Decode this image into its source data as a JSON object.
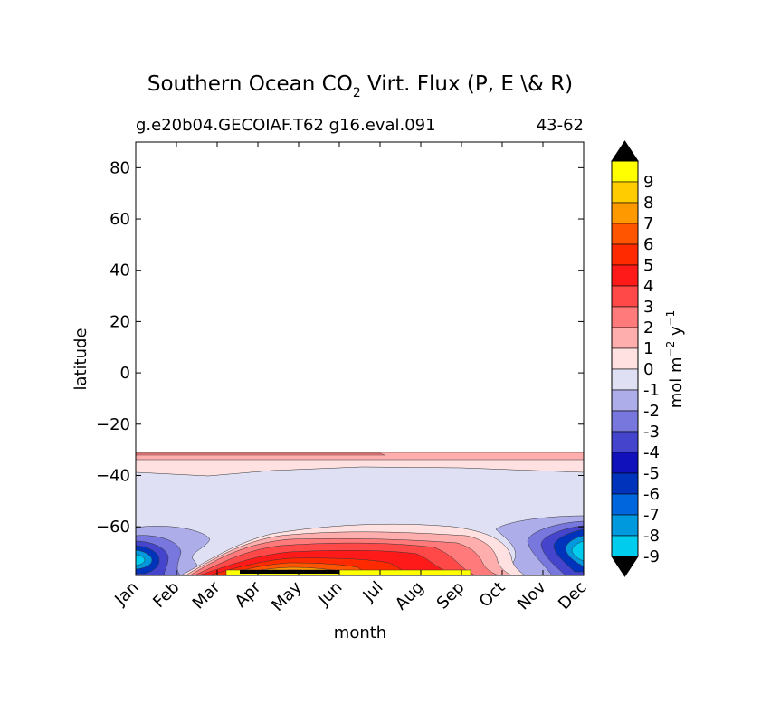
{
  "chart_data": {
    "type": "heatmap",
    "title_main": "Southern Ocean CO",
    "title_sub": "2",
    "title_rest": " Virt. Flux (P, E \\& R)",
    "subtitle_left": "g.e20b04.GECOIAF.T62 g16.eval.091",
    "subtitle_right": "43-62",
    "xlabel": "month",
    "ylabel": "latitude",
    "x_categories": [
      "Jan",
      "Feb",
      "Mar",
      "Apr",
      "May",
      "Jun",
      "Jul",
      "Aug",
      "Sep",
      "Oct",
      "Nov",
      "Dec"
    ],
    "ylim": [
      -79,
      90
    ],
    "y_ticks": [
      {
        "value": 80,
        "label": "80"
      },
      {
        "value": 60,
        "label": "60"
      },
      {
        "value": 40,
        "label": "40"
      },
      {
        "value": 20,
        "label": "20"
      },
      {
        "value": 0,
        "label": "0"
      },
      {
        "value": -20,
        "label": "−20"
      },
      {
        "value": -40,
        "label": "−40"
      },
      {
        "value": -60,
        "label": "−60"
      }
    ],
    "colorbar": {
      "label_main": "mol m",
      "label_exp1": "−2",
      "label_mid": " y",
      "label_exp2": "−1",
      "extend": "both",
      "levels": [
        {
          "label": "9",
          "color": "#ffff00"
        },
        {
          "label": "8",
          "color": "#ffcc00"
        },
        {
          "label": "7",
          "color": "#ff9900"
        },
        {
          "label": "6",
          "color": "#ff5500"
        },
        {
          "label": "5",
          "color": "#ff2a00"
        },
        {
          "label": "4",
          "color": "#ff1a1a"
        },
        {
          "label": "3",
          "color": "#ff4848"
        },
        {
          "label": "2",
          "color": "#ff7b7b"
        },
        {
          "label": "1",
          "color": "#ffaeae"
        },
        {
          "label": "0",
          "color": "#ffe1e1"
        },
        {
          "label": "-1",
          "color": "#e0e0f4"
        },
        {
          "label": "-2",
          "color": "#adadea"
        },
        {
          "label": "-3",
          "color": "#7777dd"
        },
        {
          "label": "-4",
          "color": "#4444cc"
        },
        {
          "label": "-5",
          "color": "#1111bb"
        },
        {
          "label": "-6",
          "color": "#0033bb"
        },
        {
          "label": "-7",
          "color": "#0066dd"
        },
        {
          "label": "-8",
          "color": "#0099dd"
        },
        {
          "label": "-9",
          "color": "#00ccee"
        }
      ],
      "below_color": "#00ffff",
      "over_color": "#000000"
    }
  }
}
